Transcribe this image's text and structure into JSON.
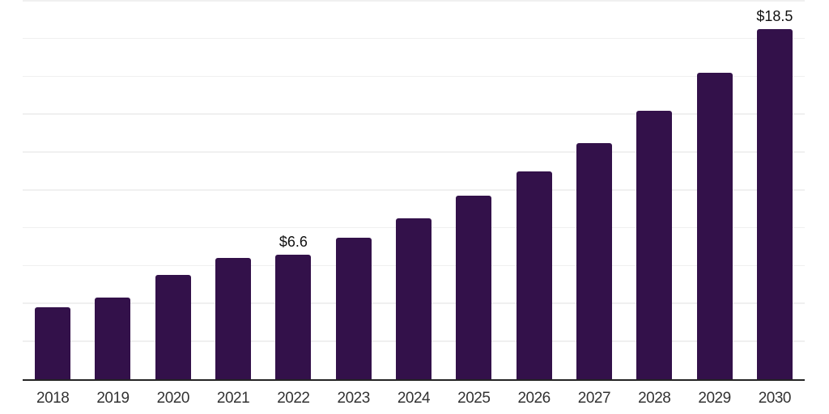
{
  "chart_data": {
    "type": "bar",
    "title": "",
    "xlabel": "",
    "ylabel": "",
    "categories": [
      "2018",
      "2019",
      "2020",
      "2021",
      "2022",
      "2023",
      "2024",
      "2025",
      "2026",
      "2027",
      "2028",
      "2029",
      "2030"
    ],
    "values": [
      3.8,
      4.3,
      5.5,
      6.4,
      6.6,
      7.5,
      8.5,
      9.7,
      11.0,
      12.5,
      14.2,
      16.2,
      18.5
    ],
    "value_labels": [
      {
        "category": "2022",
        "text": "$6.6"
      },
      {
        "category": "2030",
        "text": "$18.5"
      }
    ],
    "ylim": [
      0,
      20
    ],
    "grid_step": 2,
    "grid": true,
    "legend": false,
    "y_tick_labels_shown": false
  },
  "colors": {
    "bar": "#33114A",
    "gridline": "#f0f0f0",
    "axis": "#242424",
    "x_tick_text": "#333333",
    "value_label_text": "#111111",
    "background": "#ffffff"
  }
}
